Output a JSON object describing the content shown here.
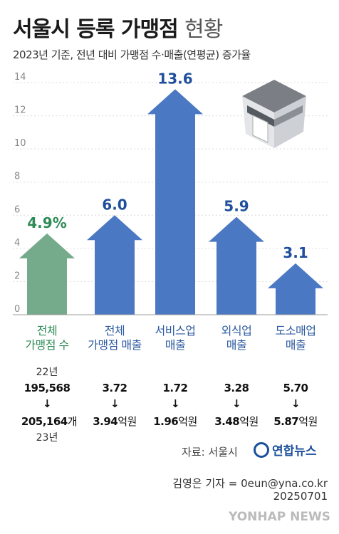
{
  "header": {
    "title_main": "서울시 등록 가맹점",
    "title_light": "현황",
    "subtitle": "2023년 기준, 전년 대비 가맹점 수·매출(연평균) 증가율"
  },
  "chart_data": {
    "type": "bar",
    "ylim": [
      0,
      14
    ],
    "yticks": [
      0,
      2,
      4,
      6,
      8,
      10,
      12,
      14
    ],
    "categories": [
      "전체 가맹점 수",
      "전체 가맹점 매출",
      "서비스업 매출",
      "외식업 매출",
      "도소매업 매출"
    ],
    "values": [
      4.9,
      6.0,
      13.6,
      5.9,
      3.1
    ],
    "value_labels": [
      "4.9%",
      "6.0",
      "13.6",
      "5.9",
      "3.1"
    ],
    "colors": [
      "#75ab8a",
      "#4a78c2",
      "#4a78c2",
      "#4a78c2",
      "#4a78c2"
    ],
    "label_colors": [
      "#2e8b57",
      "#1f4f9c",
      "#1f4f9c",
      "#1f4f9c",
      "#1f4f9c"
    ],
    "grid": true
  },
  "categories_text": [
    {
      "line1": "전체",
      "line2": "가맹점 수"
    },
    {
      "line1": "전체",
      "line2": "가맹점 매출"
    },
    {
      "line1": "서비스업",
      "line2": "매출"
    },
    {
      "line1": "외식업",
      "line2": "매출"
    },
    {
      "line1": "도소매업",
      "line2": "매출"
    }
  ],
  "table": {
    "year_22": "22년",
    "year_23": "23년",
    "arrow": "↓",
    "unit_count": "개",
    "unit_money": "억원",
    "values_22": [
      "195,568",
      "3.72",
      "1.72",
      "3.28",
      "5.70"
    ],
    "values_23": [
      "205,164",
      "3.94",
      "1.96",
      "3.48",
      "5.87"
    ]
  },
  "source": "자료: 서울시",
  "logo": "연합뉴스",
  "reporter": "김영은 기자 = 0eun@yna.co.kr",
  "date": "20250701",
  "footer": "YONHAP NEWS"
}
